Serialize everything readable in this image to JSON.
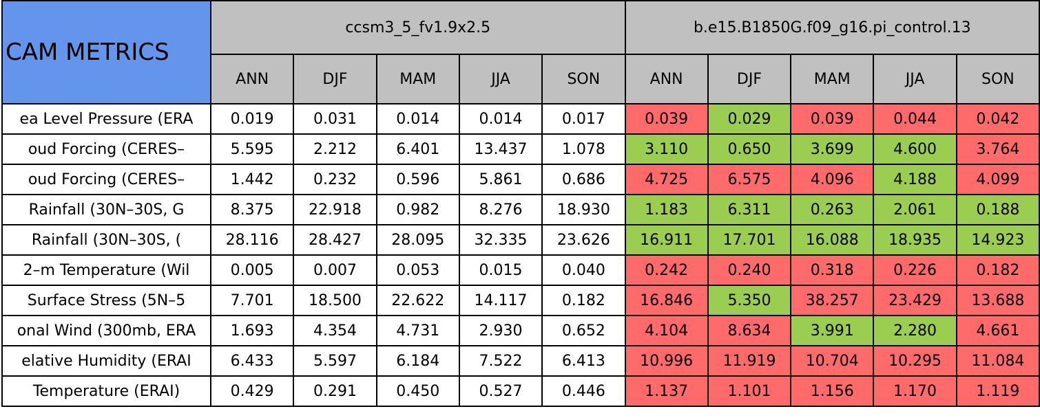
{
  "header": {
    "title": "CAM METRICS",
    "groups": [
      "ccsm3_5_fv1.9x2.5",
      "b.e15.B1850G.f09_g16.pi_control.13"
    ],
    "seasons": [
      "ANN",
      "DJF",
      "MAM",
      "JJA",
      "SON",
      "ANN",
      "DJF",
      "MAM",
      "JJA",
      "SON"
    ],
    "title_color": "#6495ed",
    "header_color": "#c0c0c0"
  },
  "table": {
    "rows": [
      {
        "label": "ea Level Pressure (ERA",
        "cells": [
          "0.019",
          "0.031",
          "0.014",
          "0.014",
          "0.017",
          "0.039",
          "0.029",
          "0.039",
          "0.044",
          "0.042"
        ],
        "fills": [
          "#ffffff",
          "#ffffff",
          "#ffffff",
          "#ffffff",
          "#ffffff",
          "#ff6b6b",
          "#9acd50",
          "#ff6b6b",
          "#ff6b6b",
          "#ff6b6b"
        ]
      },
      {
        "label": "oud Forcing (CERES–",
        "cells": [
          "5.595",
          "2.212",
          "6.401",
          "13.437",
          "1.078",
          "3.110",
          "0.650",
          "3.699",
          "4.600",
          "3.764"
        ],
        "fills": [
          "#ffffff",
          "#ffffff",
          "#ffffff",
          "#ffffff",
          "#ffffff",
          "#9acd50",
          "#9acd50",
          "#9acd50",
          "#9acd50",
          "#ff6b6b"
        ]
      },
      {
        "label": "oud Forcing (CERES–",
        "cells": [
          "1.442",
          "0.232",
          "0.596",
          "5.861",
          "0.686",
          "4.725",
          "6.575",
          "4.096",
          "4.188",
          "4.099"
        ],
        "fills": [
          "#ffffff",
          "#ffffff",
          "#ffffff",
          "#ffffff",
          "#ffffff",
          "#ff6b6b",
          "#ff6b6b",
          "#ff6b6b",
          "#9acd50",
          "#ff6b6b"
        ]
      },
      {
        "label": "Rainfall (30N–30S, G",
        "cells": [
          "8.375",
          "22.918",
          "0.982",
          "8.276",
          "18.930",
          "1.183",
          "6.311",
          "0.263",
          "2.061",
          "0.188"
        ],
        "fills": [
          "#ffffff",
          "#ffffff",
          "#ffffff",
          "#ffffff",
          "#ffffff",
          "#9acd50",
          "#9acd50",
          "#9acd50",
          "#9acd50",
          "#9acd50"
        ]
      },
      {
        "label": "Rainfall (30N–30S, (",
        "cells": [
          "28.116",
          "28.427",
          "28.095",
          "32.335",
          "23.626",
          "16.911",
          "17.701",
          "16.088",
          "18.935",
          "14.923"
        ],
        "fills": [
          "#ffffff",
          "#ffffff",
          "#ffffff",
          "#ffffff",
          "#ffffff",
          "#9acd50",
          "#9acd50",
          "#9acd50",
          "#9acd50",
          "#9acd50"
        ]
      },
      {
        "label": "2–m Temperature (Wil",
        "cells": [
          "0.005",
          "0.007",
          "0.053",
          "0.015",
          "0.040",
          "0.242",
          "0.240",
          "0.318",
          "0.226",
          "0.182"
        ],
        "fills": [
          "#ffffff",
          "#ffffff",
          "#ffffff",
          "#ffffff",
          "#ffffff",
          "#ff6b6b",
          "#ff6b6b",
          "#ff6b6b",
          "#ff6b6b",
          "#ff6b6b"
        ]
      },
      {
        "label": "Surface Stress (5N–5",
        "cells": [
          "7.701",
          "18.500",
          "22.622",
          "14.117",
          "0.182",
          "16.846",
          "5.350",
          "38.257",
          "23.429",
          "13.688"
        ],
        "fills": [
          "#ffffff",
          "#ffffff",
          "#ffffff",
          "#ffffff",
          "#ffffff",
          "#ff6b6b",
          "#9acd50",
          "#ff6b6b",
          "#ff6b6b",
          "#ff6b6b"
        ]
      },
      {
        "label": "onal Wind (300mb, ERA",
        "cells": [
          "1.693",
          "4.354",
          "4.731",
          "2.930",
          "0.652",
          "4.104",
          "8.634",
          "3.991",
          "2.280",
          "4.661"
        ],
        "fills": [
          "#ffffff",
          "#ffffff",
          "#ffffff",
          "#ffffff",
          "#ffffff",
          "#ff6b6b",
          "#ff6b6b",
          "#9acd50",
          "#9acd50",
          "#ff6b6b"
        ]
      },
      {
        "label": "elative Humidity (ERAI",
        "cells": [
          "6.433",
          "5.597",
          "6.184",
          "7.522",
          "6.413",
          "10.996",
          "11.919",
          "10.704",
          "10.295",
          "11.084"
        ],
        "fills": [
          "#ffffff",
          "#ffffff",
          "#ffffff",
          "#ffffff",
          "#ffffff",
          "#ff6b6b",
          "#ff6b6b",
          "#ff6b6b",
          "#ff6b6b",
          "#ff6b6b"
        ]
      },
      {
        "label": "Temperature (ERAI)",
        "cells": [
          "0.429",
          "0.291",
          "0.450",
          "0.527",
          "0.446",
          "1.137",
          "1.101",
          "1.156",
          "1.170",
          "1.119"
        ],
        "fills": [
          "#ffffff",
          "#ffffff",
          "#ffffff",
          "#ffffff",
          "#ffffff",
          "#ff6b6b",
          "#ff6b6b",
          "#ff6b6b",
          "#ff6b6b",
          "#ff6b6b"
        ]
      }
    ]
  }
}
